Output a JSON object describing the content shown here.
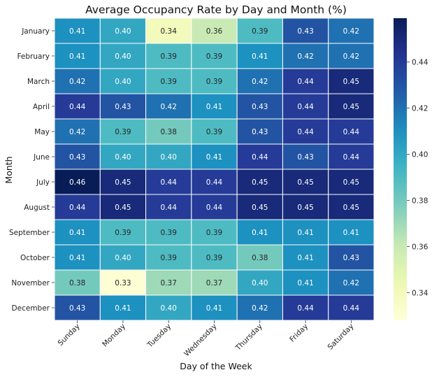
{
  "chart_data": {
    "type": "heatmap",
    "title": "Average Occupancy Rate by Day and Month (%)",
    "xlabel": "Day of the Week",
    "ylabel": "Month",
    "columns": [
      "Sunday",
      "Monday",
      "Tuesday",
      "Wednesday",
      "Thursday",
      "Friday",
      "Saturday"
    ],
    "rows": [
      "January",
      "February",
      "March",
      "April",
      "May",
      "June",
      "July",
      "August",
      "September",
      "October",
      "November",
      "December"
    ],
    "values": [
      [
        0.41,
        0.4,
        0.34,
        0.36,
        0.39,
        0.43,
        0.42
      ],
      [
        0.41,
        0.4,
        0.39,
        0.39,
        0.41,
        0.42,
        0.42
      ],
      [
        0.42,
        0.4,
        0.39,
        0.39,
        0.42,
        0.44,
        0.45
      ],
      [
        0.44,
        0.43,
        0.42,
        0.41,
        0.43,
        0.44,
        0.45
      ],
      [
        0.42,
        0.39,
        0.38,
        0.39,
        0.43,
        0.44,
        0.44
      ],
      [
        0.43,
        0.4,
        0.4,
        0.41,
        0.44,
        0.43,
        0.44
      ],
      [
        0.46,
        0.45,
        0.44,
        0.44,
        0.45,
        0.45,
        0.45
      ],
      [
        0.44,
        0.45,
        0.44,
        0.44,
        0.45,
        0.45,
        0.45
      ],
      [
        0.41,
        0.39,
        0.39,
        0.39,
        0.41,
        0.41,
        0.41
      ],
      [
        0.41,
        0.4,
        0.39,
        0.39,
        0.38,
        0.41,
        0.43
      ],
      [
        0.38,
        0.33,
        0.37,
        0.37,
        0.4,
        0.41,
        0.42
      ],
      [
        0.43,
        0.41,
        0.4,
        0.41,
        0.42,
        0.44,
        0.44
      ]
    ],
    "colormap": "YlGnBu",
    "vmin": 0.328,
    "vmax": 0.459,
    "colorbar_ticks": [
      "0.34",
      "0.36",
      "0.38",
      "0.40",
      "0.42",
      "0.44"
    ],
    "value_format": "2 decimals",
    "grid": "white cell borders"
  }
}
